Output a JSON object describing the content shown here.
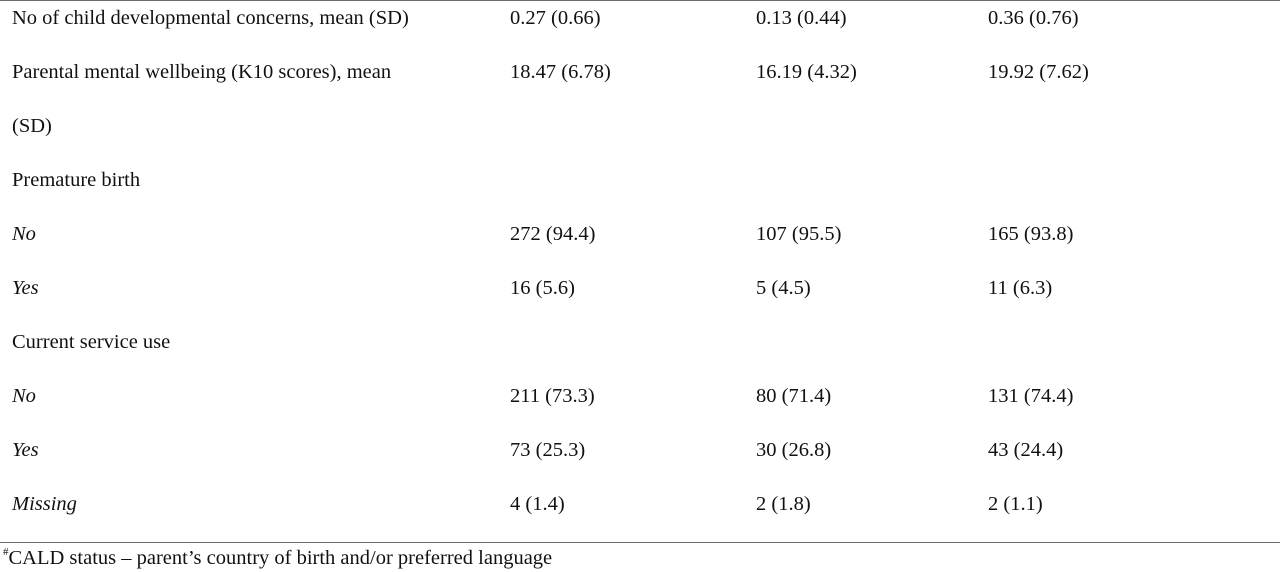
{
  "rows": [
    {
      "label": "No of child developmental concerns, mean (SD)",
      "italic": false,
      "values": [
        "0.27 (0.66)",
        "0.13 (0.44)",
        "0.36 (0.76)"
      ]
    },
    {
      "label": "Parental mental wellbeing (K10 scores), mean",
      "italic": false,
      "values": [
        "18.47 (6.78)",
        "16.19 (4.32)",
        "19.92 (7.62)"
      ]
    },
    {
      "label": "(SD)",
      "italic": false,
      "values": [
        "",
        "",
        ""
      ]
    },
    {
      "label": "Premature birth",
      "italic": false,
      "values": [
        "",
        "",
        ""
      ]
    },
    {
      "label": "No",
      "italic": true,
      "values": [
        "272 (94.4)",
        "107 (95.5)",
        "165 (93.8)"
      ]
    },
    {
      "label": "Yes",
      "italic": true,
      "values": [
        "16 (5.6)",
        "5 (4.5)",
        "11 (6.3)"
      ]
    },
    {
      "label": "Current service use",
      "italic": false,
      "values": [
        "",
        "",
        ""
      ]
    },
    {
      "label": "No",
      "italic": true,
      "values": [
        "211 (73.3)",
        "80 (71.4)",
        "131 (74.4)"
      ]
    },
    {
      "label": "Yes",
      "italic": true,
      "values": [
        "73 (25.3)",
        "30 (26.8)",
        "43 (24.4)"
      ]
    },
    {
      "label": "Missing",
      "italic": true,
      "values": [
        "4 (1.4)",
        "2 (1.8)",
        "2 (1.1)"
      ]
    }
  ],
  "footnote": {
    "marker": "#",
    "text": "CALD status – parent’s country of birth and/or preferred language"
  }
}
